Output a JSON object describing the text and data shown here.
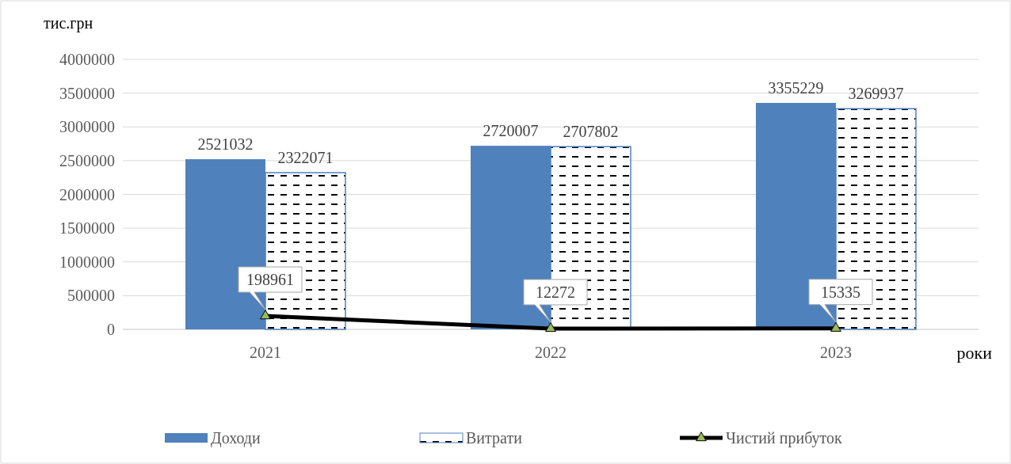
{
  "chart_data": {
    "type": "bar",
    "xlabel": "роки",
    "ylabel": "тис.грн",
    "categories": [
      "2021",
      "2022",
      "2023"
    ],
    "series": [
      {
        "name": "Доходи",
        "color": "#4f81bd",
        "values": [
          2521032,
          2720007,
          3355229
        ]
      },
      {
        "name": "Витрати",
        "color": "#4f81bd",
        "line_style": "dashed",
        "values": [
          2322071,
          2707802,
          3269937
        ]
      },
      {
        "name": "Чистий прибуток",
        "type": "line",
        "color": "#000000",
        "marker": "triangle",
        "values": [
          198961,
          12272,
          15335
        ]
      }
    ],
    "ylim": [
      0,
      4000000
    ],
    "yticks": [
      0,
      500000,
      1000000,
      1500000,
      2000000,
      2500000,
      3000000,
      3500000,
      4000000
    ],
    "grid": "y",
    "data_labels": true,
    "legend": "bottom"
  }
}
